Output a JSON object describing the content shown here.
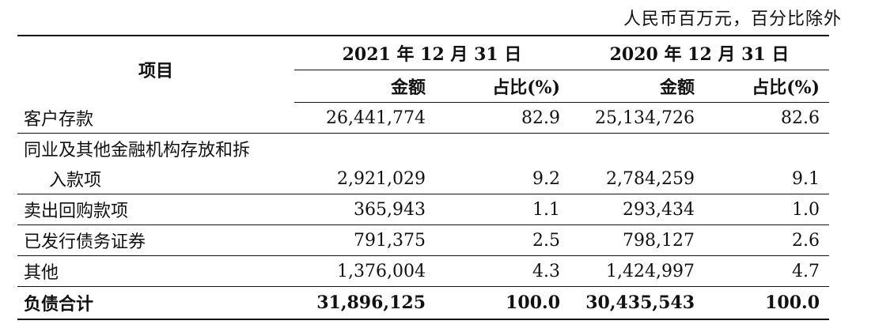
{
  "unit_note": "人民币百万元，百分比除外",
  "header": {
    "item": "项目",
    "year_2021": "2021 年 12 月 31 日",
    "year_2020": "2020 年 12 月 31 日",
    "amount": "金额",
    "ratio": "占比(%)"
  },
  "rows": [
    {
      "label": "客户存款",
      "a2021": "26,441,774",
      "r2021": "82.9",
      "a2020": "25,134,726",
      "r2020": "82.6"
    },
    {
      "label_line1": "同业及其他金融机构存放和拆",
      "label_line2": "入款项",
      "a2021": "2,921,029",
      "r2021": "9.2",
      "a2020": "2,784,259",
      "r2020": "9.1"
    },
    {
      "label": "卖出回购款项",
      "a2021": "365,943",
      "r2021": "1.1",
      "a2020": "293,434",
      "r2020": "1.0"
    },
    {
      "label": "已发行债务证券",
      "a2021": "791,375",
      "r2021": "2.5",
      "a2020": "798,127",
      "r2020": "2.6"
    },
    {
      "label": "其他",
      "a2021": "1,376,004",
      "r2021": "4.3",
      "a2020": "1,424,997",
      "r2020": "4.7"
    }
  ],
  "total": {
    "label": "负债合计",
    "a2021": "31,896,125",
    "r2021": "100.0",
    "a2020": "30,435,543",
    "r2020": "100.0"
  }
}
